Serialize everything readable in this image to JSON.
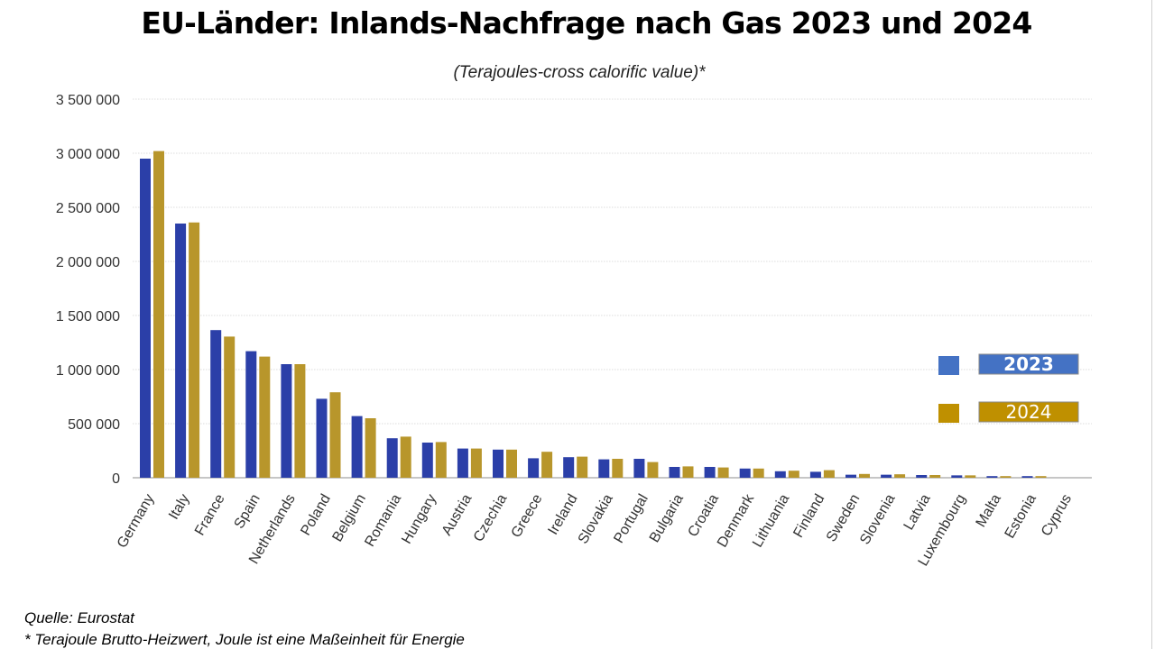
{
  "title": "EU-Länder: Inlands-Nachfrage nach Gas 2023 und 2024",
  "subtitle": "(Terajoules-cross calorific value)*",
  "footer": {
    "source": "Quelle: Eurostat",
    "note": "* Terajoule Brutto-Heizwert, Joule ist eine Maßeinheit für Energie"
  },
  "colors": {
    "s2023": "#2b3fa8",
    "s2024": "#b8962b",
    "legend2023": "#4472c4",
    "legend2024": "#bf9000"
  },
  "chart_data": {
    "type": "bar",
    "title": "EU-Länder: Inlands-Nachfrage nach Gas 2023 und 2024",
    "subtitle": "(Terajoules-cross calorific value)*",
    "xlabel": "",
    "ylabel": "",
    "ylim": [
      0,
      3500000
    ],
    "yticks": [
      0,
      500000,
      1000000,
      1500000,
      2000000,
      2500000,
      3000000,
      3500000
    ],
    "ytick_labels": [
      "0",
      "500 000",
      "1 000 000",
      "1 500 000",
      "2 000 000",
      "2 500 000",
      "3 000 000",
      "3 500 000"
    ],
    "grid": true,
    "legend_position": "right",
    "categories": [
      "Germany",
      "Italy",
      "France",
      "Spain",
      "Netherlands",
      "Poland",
      "Belgium",
      "Romania",
      "Hungary",
      "Austria",
      "Czechia",
      "Greece",
      "Ireland",
      "Slovakia",
      "Portugal",
      "Bulgaria",
      "Croatia",
      "Denmark",
      "Lithuania",
      "Finland",
      "Sweden",
      "Slovenia",
      "Latvia",
      "Luxembourg",
      "Malta",
      "Estonia",
      "Cyprus"
    ],
    "series": [
      {
        "name": "2023",
        "values": [
          2950000,
          2350000,
          1365000,
          1170000,
          1050000,
          730000,
          570000,
          365000,
          325000,
          270000,
          260000,
          180000,
          190000,
          170000,
          175000,
          100000,
          100000,
          85000,
          60000,
          55000,
          28000,
          28000,
          25000,
          22000,
          15000,
          15000,
          0
        ]
      },
      {
        "name": "2024",
        "values": [
          3020000,
          2360000,
          1305000,
          1120000,
          1050000,
          790000,
          550000,
          380000,
          330000,
          270000,
          260000,
          240000,
          195000,
          175000,
          145000,
          105000,
          95000,
          85000,
          65000,
          70000,
          35000,
          32000,
          25000,
          22000,
          15000,
          15000,
          0
        ]
      }
    ]
  }
}
